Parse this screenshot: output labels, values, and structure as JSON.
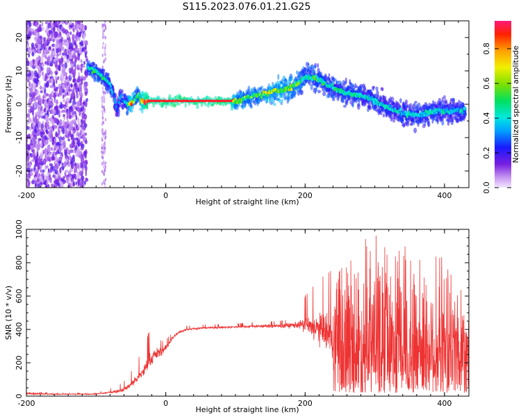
{
  "title": "S115.2023.076.01.21.G25",
  "colorbar": {
    "label": "Normalized spectral amplitude",
    "ticks": [
      "0.0",
      "0.2",
      "0.4",
      "0.6",
      "0.8"
    ],
    "tick_values": [
      0.0,
      0.2,
      0.4,
      0.6,
      0.8
    ],
    "range": [
      0,
      0.96
    ],
    "colormap": "rainbow (white-violet → purple → blue → cyan → green → yellow → orange → red → magenta)"
  },
  "chart_data": [
    {
      "type": "heatmap",
      "title": "",
      "xlabel": "Height of straight line (km)",
      "ylabel": "Frequency (Hz)",
      "xlim": [
        -200,
        435
      ],
      "ylim": [
        -25,
        25
      ],
      "xticks": [
        -200,
        0,
        200,
        400
      ],
      "xtick_labels": [
        "-200",
        "0",
        "200",
        "400"
      ],
      "yticks": [
        20,
        10,
        0,
        -10,
        -20
      ],
      "ytick_labels": [
        "20",
        "10",
        "0",
        "-10",
        "-20"
      ],
      "noise_region_x": [
        -200,
        -113
      ],
      "ridge": {
        "x": [
          -112,
          -100,
          -90,
          -80,
          -75,
          -70,
          -65,
          -60,
          -55,
          -50,
          -45,
          -40,
          -35,
          -30,
          -25,
          0,
          50,
          95,
          100,
          120,
          140,
          160,
          180,
          200,
          215,
          230,
          250,
          270,
          290,
          310,
          330,
          350,
          370,
          390,
          410,
          430
        ],
        "freq_hz": [
          11,
          10,
          8,
          6,
          3,
          -2,
          2,
          1,
          0,
          0,
          1,
          3,
          1,
          1,
          1,
          1,
          1,
          1,
          1,
          2,
          3,
          4,
          5,
          8,
          8,
          6,
          4,
          3,
          2,
          0,
          -2,
          -3,
          -3,
          -2,
          -2,
          -2
        ],
        "amplitude": [
          0.45,
          0.5,
          0.45,
          0.4,
          0.35,
          0.3,
          0.35,
          0.3,
          0.45,
          0.8,
          0.55,
          0.5,
          0.7,
          0.95,
          0.95,
          0.95,
          0.95,
          0.95,
          0.6,
          0.55,
          0.6,
          0.65,
          0.6,
          0.5,
          0.5,
          0.45,
          0.45,
          0.45,
          0.4,
          0.4,
          0.4,
          0.4,
          0.4,
          0.4,
          0.4,
          0.4
        ]
      }
    },
    {
      "type": "line",
      "title": "",
      "xlabel": "Height of straight line (km)",
      "ylabel": "SNR (10 * v/v)",
      "xlim": [
        -200,
        435
      ],
      "ylim": [
        0,
        1000
      ],
      "xticks": [
        -200,
        0,
        200,
        400
      ],
      "xtick_labels": [
        "-200",
        "0",
        "200",
        "400"
      ],
      "yticks": [
        0,
        200,
        400,
        600,
        800,
        1000
      ],
      "ytick_labels": [
        "0",
        "200",
        "400",
        "600",
        "800",
        "1000"
      ],
      "color": "#ee3333",
      "series": [
        {
          "x": [
            -200,
            -180,
            -160,
            -140,
            -120,
            -100,
            -85,
            -70,
            -60,
            -50,
            -40,
            -30,
            -25,
            -20,
            -15,
            -10,
            -5,
            0,
            5,
            10,
            15,
            20,
            30,
            40,
            60,
            80,
            100,
            120,
            140,
            160,
            180,
            195,
            200,
            220,
            240,
            250,
            270,
            300,
            320,
            340,
            360,
            380,
            400,
            420,
            435
          ],
          "mean": [
            15,
            15,
            12,
            12,
            12,
            12,
            20,
            30,
            40,
            70,
            110,
            160,
            200,
            230,
            250,
            260,
            270,
            290,
            320,
            350,
            370,
            385,
            400,
            405,
            410,
            412,
            415,
            418,
            420,
            420,
            425,
            430,
            420,
            400,
            350,
            300,
            290,
            300,
            300,
            300,
            300,
            300,
            300,
            300,
            300
          ],
          "spread": [
            8,
            8,
            6,
            5,
            5,
            5,
            10,
            15,
            20,
            30,
            45,
            60,
            70,
            70,
            60,
            50,
            40,
            30,
            25,
            20,
            15,
            12,
            10,
            10,
            10,
            10,
            10,
            12,
            15,
            20,
            25,
            40,
            90,
            150,
            220,
            260,
            280,
            300,
            300,
            300,
            300,
            300,
            300,
            300,
            300
          ],
          "max": [
            25,
            25,
            20,
            20,
            20,
            20,
            40,
            60,
            90,
            160,
            260,
            400,
            420,
            380,
            350,
            340,
            330,
            340,
            360,
            380,
            395,
            405,
            420,
            425,
            430,
            432,
            435,
            440,
            445,
            450,
            460,
            470,
            600,
            700,
            760,
            820,
            900,
            1000,
            930,
            900,
            900,
            880,
            850,
            820,
            800
          ]
        }
      ]
    }
  ]
}
